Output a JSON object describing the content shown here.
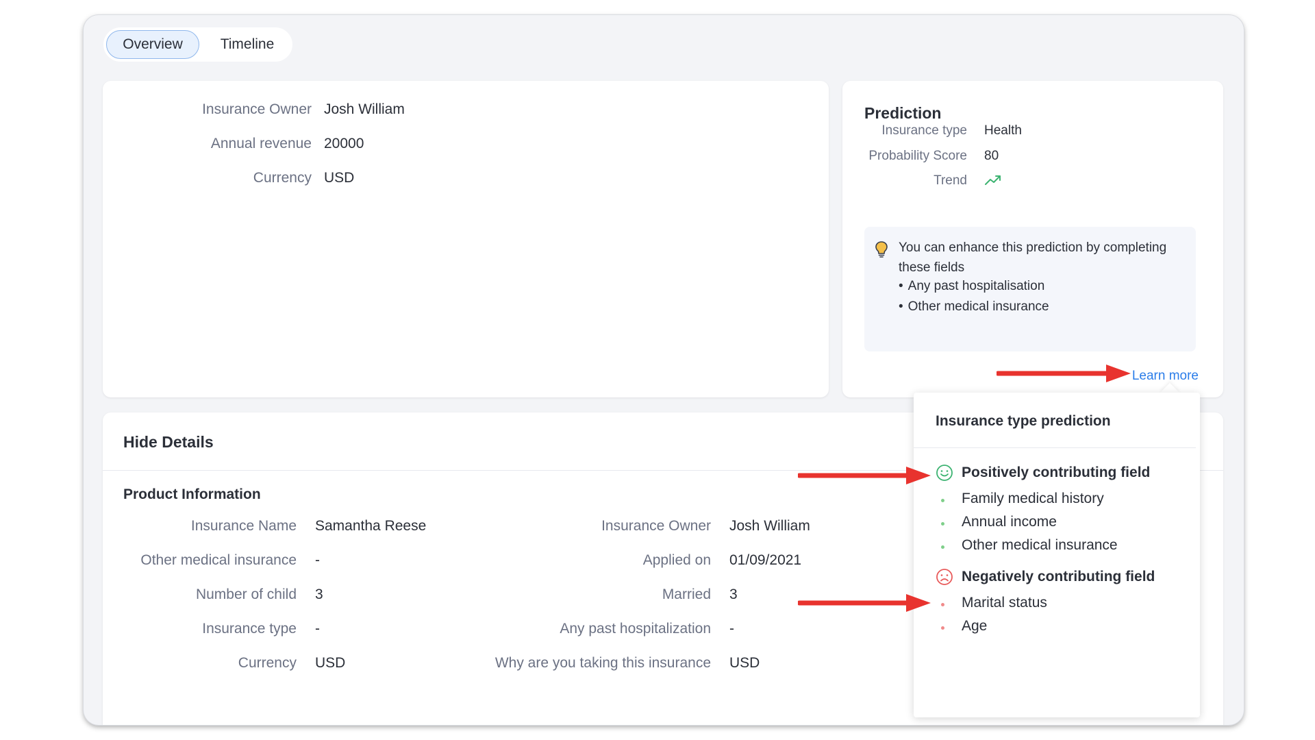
{
  "tabs": [
    {
      "label": "Overview",
      "active": true
    },
    {
      "label": "Timeline",
      "active": false
    }
  ],
  "summary": {
    "fields": [
      {
        "label": "Insurance Owner",
        "value": "Josh William"
      },
      {
        "label": "Annual revenue",
        "value": "20000"
      },
      {
        "label": "Currency",
        "value": "USD"
      }
    ]
  },
  "prediction": {
    "title": "Prediction",
    "fields": [
      {
        "label": "Insurance type",
        "value": "Health"
      },
      {
        "label": "Probability Score",
        "value": "80"
      },
      {
        "label": "Trend",
        "icon": "trend-up-icon"
      }
    ],
    "hint": {
      "text": "You can enhance this prediction by completing these fields",
      "items": [
        "Any past hospitalisation",
        "Other medical insurance"
      ]
    },
    "learn_more": "Learn more"
  },
  "details": {
    "title": "Hide Details",
    "section": "Product Information",
    "left": [
      {
        "label": "Insurance Name",
        "value": "Samantha Reese"
      },
      {
        "label": "Other medical insurance",
        "value": "-"
      },
      {
        "label": "Number of child",
        "value": "3"
      },
      {
        "label": "Insurance type",
        "value": "-"
      },
      {
        "label": "Currency",
        "value": "USD"
      }
    ],
    "right": [
      {
        "label": "Insurance Owner",
        "value": "Josh William"
      },
      {
        "label": "Applied on",
        "value": "01/09/2021"
      },
      {
        "label": "Married",
        "value": "3"
      },
      {
        "label": "Any past hospitalization",
        "value": "-"
      },
      {
        "label": "Why are you taking this insurance",
        "value": "USD"
      }
    ]
  },
  "popover": {
    "title": "Insurance type prediction",
    "positive": {
      "heading": "Positively contributing field",
      "items": [
        "Family medical history",
        "Annual income",
        "Other medical insurance"
      ]
    },
    "negative": {
      "heading": "Negatively contributing field",
      "items": [
        "Marital status",
        "Age"
      ]
    }
  },
  "colors": {
    "accent": "#2b7de9",
    "positive": "#3cb371",
    "negative": "#e85a5a",
    "annotation_arrow": "#e8332e"
  }
}
